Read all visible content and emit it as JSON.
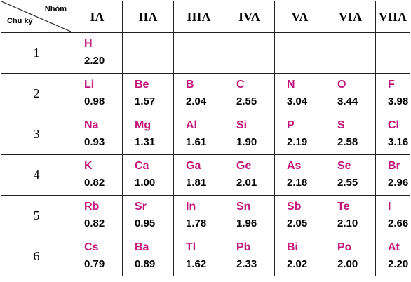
{
  "header": {
    "group_label": "Nhóm",
    "period_label": "Chu kỳ",
    "groups": [
      "IA",
      "IIA",
      "IIIA",
      "IVA",
      "VA",
      "VIA",
      "VIIA"
    ]
  },
  "rows": [
    {
      "period": "1",
      "cells": [
        {
          "symbol": "H",
          "value": "2.20"
        },
        {
          "symbol": "",
          "value": ""
        },
        {
          "symbol": "",
          "value": ""
        },
        {
          "symbol": "",
          "value": ""
        },
        {
          "symbol": "",
          "value": ""
        },
        {
          "symbol": "",
          "value": ""
        },
        {
          "symbol": "",
          "value": ""
        }
      ]
    },
    {
      "period": "2",
      "cells": [
        {
          "symbol": "Li",
          "value": "0.98"
        },
        {
          "symbol": "Be",
          "value": "1.57"
        },
        {
          "symbol": "B",
          "value": "2.04"
        },
        {
          "symbol": "C",
          "value": "2.55"
        },
        {
          "symbol": "N",
          "value": "3.04"
        },
        {
          "symbol": "O",
          "value": "3.44"
        },
        {
          "symbol": "F",
          "value": "3.98"
        }
      ]
    },
    {
      "period": "3",
      "cells": [
        {
          "symbol": "Na",
          "value": "0.93"
        },
        {
          "symbol": "Mg",
          "value": "1.31"
        },
        {
          "symbol": "Al",
          "value": "1.61"
        },
        {
          "symbol": "Si",
          "value": "1.90"
        },
        {
          "symbol": "P",
          "value": "2.19"
        },
        {
          "symbol": "S",
          "value": "2.58"
        },
        {
          "symbol": "Cl",
          "value": "3.16"
        }
      ]
    },
    {
      "period": "4",
      "cells": [
        {
          "symbol": "K",
          "value": "0.82"
        },
        {
          "symbol": "Ca",
          "value": "1.00"
        },
        {
          "symbol": "Ga",
          "value": "1.81"
        },
        {
          "symbol": "Ge",
          "value": "2.01"
        },
        {
          "symbol": "As",
          "value": "2.18"
        },
        {
          "symbol": "Se",
          "value": "2.55"
        },
        {
          "symbol": "Br",
          "value": "2.96"
        }
      ]
    },
    {
      "period": "5",
      "cells": [
        {
          "symbol": "Rb",
          "value": "0.82"
        },
        {
          "symbol": "Sr",
          "value": "0.95"
        },
        {
          "symbol": "In",
          "value": "1.78"
        },
        {
          "symbol": "Sn",
          "value": "1.96"
        },
        {
          "symbol": "Sb",
          "value": "2.05"
        },
        {
          "symbol": "Te",
          "value": "2.10"
        },
        {
          "symbol": "I",
          "value": "2.66"
        }
      ]
    },
    {
      "period": "6",
      "cells": [
        {
          "symbol": "Cs",
          "value": "0.79"
        },
        {
          "symbol": "Ba",
          "value": "0.89"
        },
        {
          "symbol": "Tl",
          "value": "1.62"
        },
        {
          "symbol": "Pb",
          "value": "2.33"
        },
        {
          "symbol": "Bi",
          "value": "2.02"
        },
        {
          "symbol": "Po",
          "value": "2.00"
        },
        {
          "symbol": "At",
          "value": "2.20"
        }
      ]
    }
  ],
  "colors": {
    "symbol": "#c2147a",
    "value": "#000000",
    "border": "#222222"
  }
}
